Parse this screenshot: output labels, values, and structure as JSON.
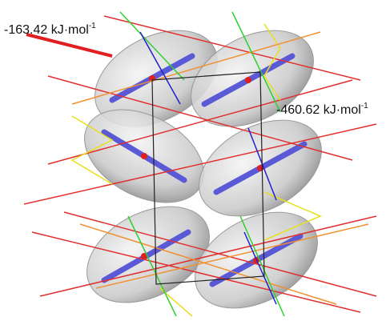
{
  "energy_labels": [
    {
      "value": "-163.42",
      "unit": "kJ·mol",
      "exponent": "-1"
    },
    {
      "value": "-460.62",
      "unit": "kJ·mol",
      "exponent": "-1"
    }
  ]
}
